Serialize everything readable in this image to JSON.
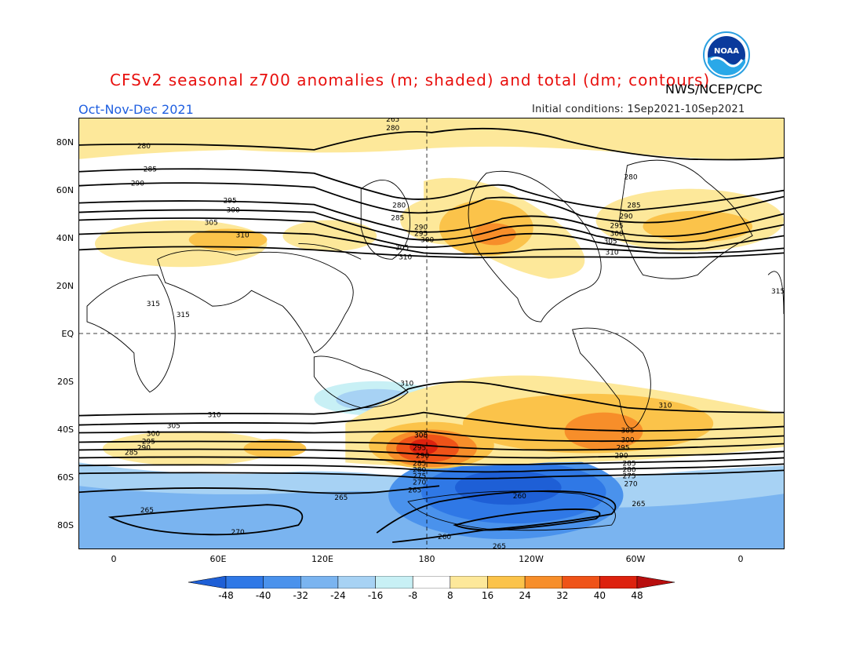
{
  "header": {
    "title": "CFSv2 seasonal z700 anomalies (m; shaded) and total (dm; contours)",
    "agency": "NWS/NCEP/CPC",
    "period": "Oct-Nov-Dec 2021",
    "initial_conditions": "Initial conditions: 1Sep2021-10Sep2021",
    "logo_text": "NOAA"
  },
  "axes": {
    "y_labels": [
      "80N",
      "60N",
      "40N",
      "20N",
      "EQ",
      "20S",
      "40S",
      "60S",
      "80S"
    ],
    "x_labels": [
      "0",
      "60E",
      "120E",
      "180",
      "120W",
      "60W",
      "0"
    ]
  },
  "contour_labels": [
    "280",
    "280",
    "285",
    "290",
    "295",
    "300",
    "305",
    "310",
    "280",
    "285",
    "290",
    "295",
    "300",
    "305",
    "310",
    "280",
    "285",
    "290",
    "295",
    "300",
    "305",
    "310",
    "315",
    "315",
    "315",
    "310",
    "310",
    "310",
    "305",
    "300",
    "295",
    "290",
    "285",
    "305",
    "300",
    "295",
    "290",
    "285",
    "280",
    "275",
    "270",
    "265",
    "305",
    "300",
    "295",
    "290",
    "285",
    "280",
    "275",
    "270",
    "265",
    "265",
    "265",
    "270",
    "260",
    "260",
    "265",
    "265"
  ],
  "colorbar": {
    "labels": [
      "-48",
      "-40",
      "-32",
      "-24",
      "-16",
      "-8",
      "8",
      "16",
      "24",
      "32",
      "40",
      "48"
    ],
    "colors": [
      "#1e5fd6",
      "#2f78e6",
      "#4a92ec",
      "#7ab4f0",
      "#a7d2f4",
      "#c8f0f5",
      "#ffffff",
      "#fde89a",
      "#fbc34a",
      "#f78e2a",
      "#ef5318",
      "#dd220e",
      "#b80e0e"
    ]
  }
}
